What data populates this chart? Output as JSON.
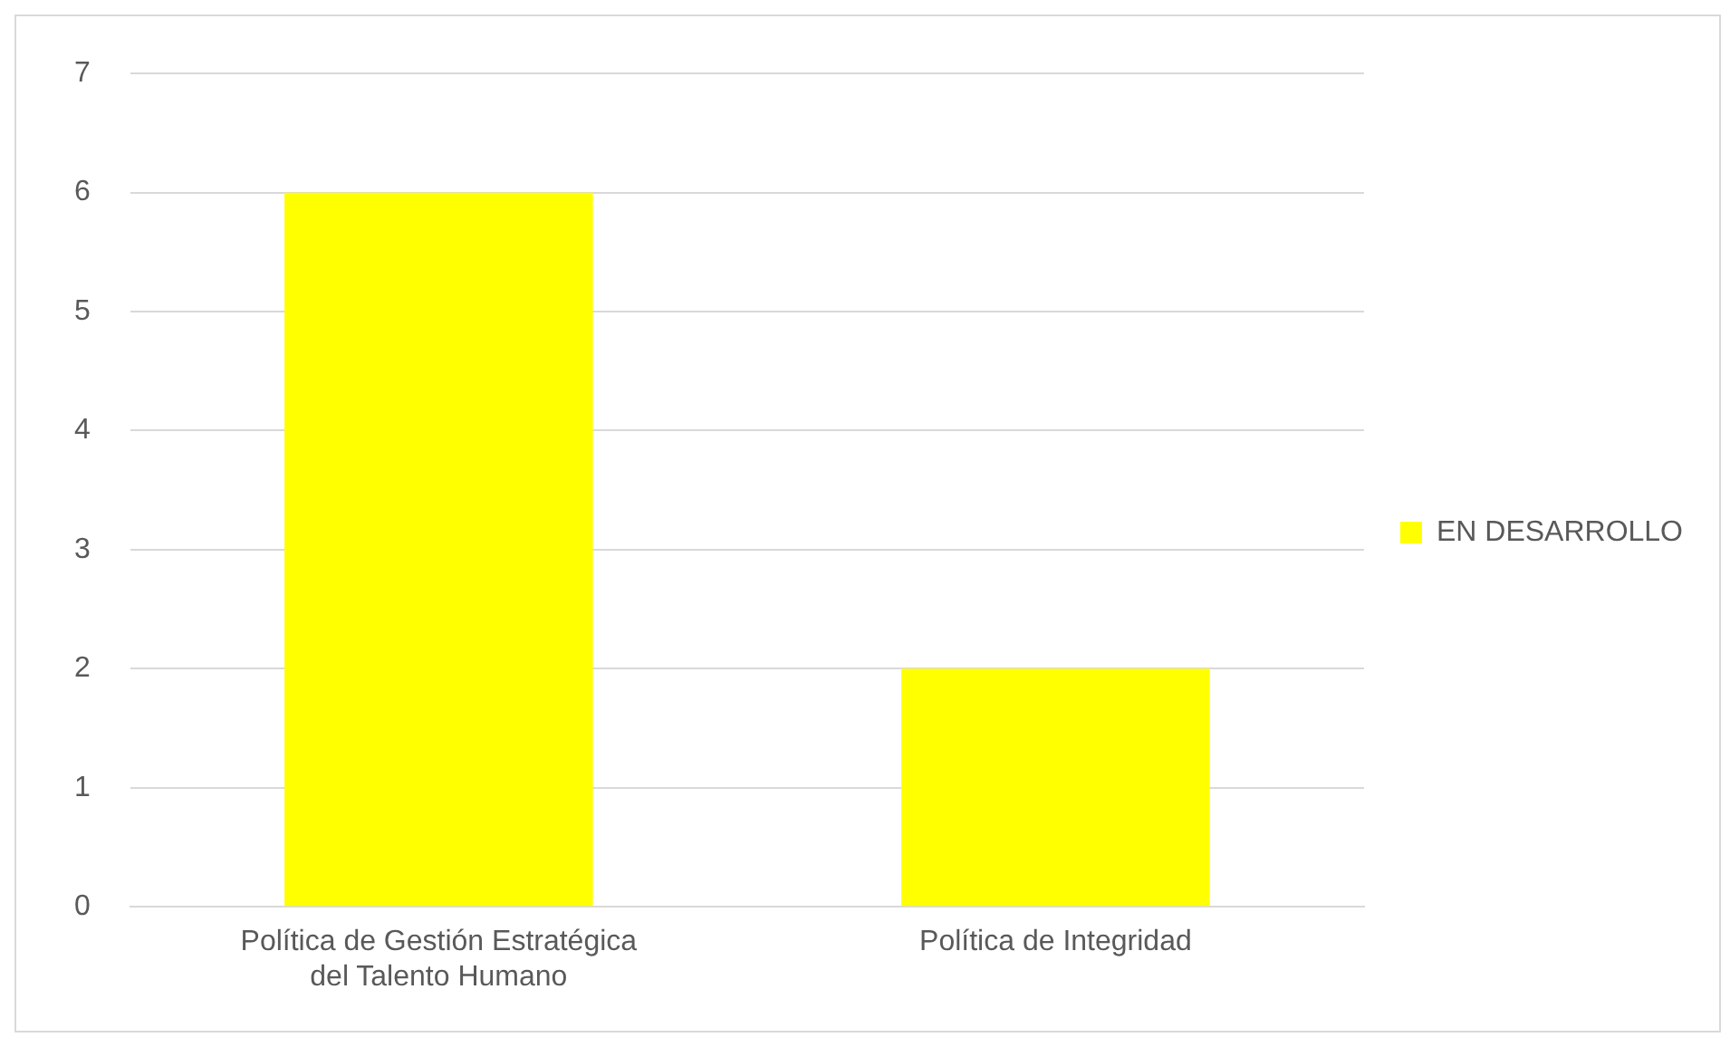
{
  "chart_data": {
    "type": "bar",
    "categories": [
      "Política de Gestión Estratégica del Talento Humano",
      "Política de Integridad"
    ],
    "series": [
      {
        "name": "EN DESARROLLO",
        "color": "#ffff00",
        "values": [
          6,
          2
        ]
      }
    ],
    "ylim": [
      0,
      7
    ],
    "yticks": [
      0,
      1,
      2,
      3,
      4,
      5,
      6,
      7
    ],
    "grid": "y",
    "legend": "right"
  }
}
